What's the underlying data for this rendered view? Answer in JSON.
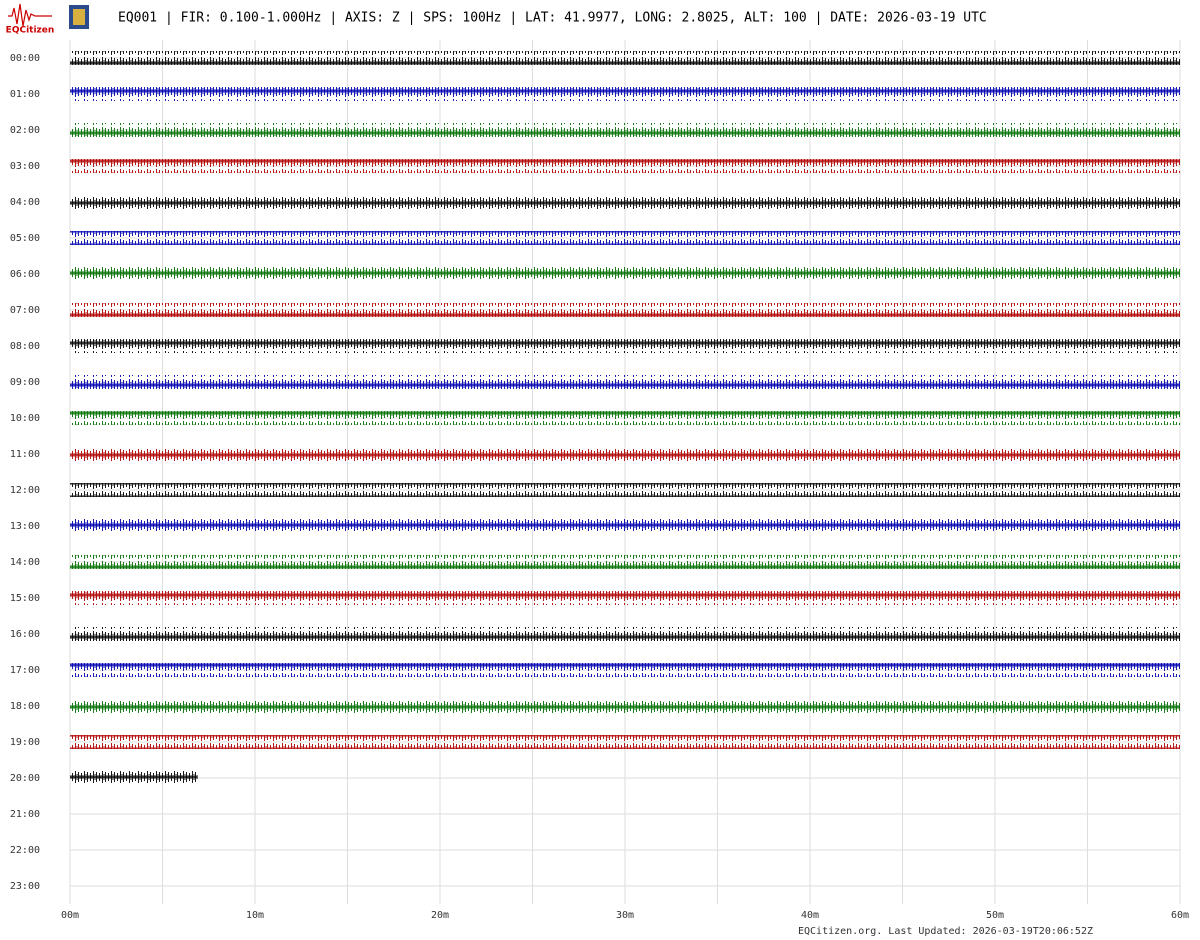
{
  "chart_data": {
    "type": "helicorder",
    "logo_text": "EQCitizen",
    "title": "EQ001 | FIR: 0.100-1.000Hz | AXIS: Z | SPS: 100Hz | LAT: 41.9977, LONG: 2.8025, ALT: 100 | DATE: 2026-03-19 UTC",
    "footer": "EQCitizen.org. Last Updated: 2026-03-19T20:06:52Z",
    "xlim": [
      0,
      60
    ],
    "xticks": [
      {
        "value": 0,
        "label": "00m"
      },
      {
        "value": 10,
        "label": "10m"
      },
      {
        "value": 20,
        "label": "20m"
      },
      {
        "value": 30,
        "label": "30m"
      },
      {
        "value": 40,
        "label": "40m"
      },
      {
        "value": 50,
        "label": "50m"
      },
      {
        "value": 60,
        "label": "60m"
      }
    ],
    "grid_xticks": [
      0,
      5,
      10,
      15,
      20,
      25,
      30,
      35,
      40,
      45,
      50,
      55,
      60
    ],
    "grid": true,
    "rows": [
      {
        "label": "00:00",
        "color": "#000000",
        "end": 60
      },
      {
        "label": "01:00",
        "color": "#0000b0",
        "end": 60
      },
      {
        "label": "02:00",
        "color": "#007000",
        "end": 60
      },
      {
        "label": "03:00",
        "color": "#b00000",
        "end": 60
      },
      {
        "label": "04:00",
        "color": "#000000",
        "end": 60
      },
      {
        "label": "05:00",
        "color": "#0000b0",
        "end": 60
      },
      {
        "label": "06:00",
        "color": "#007000",
        "end": 60
      },
      {
        "label": "07:00",
        "color": "#b00000",
        "end": 60
      },
      {
        "label": "08:00",
        "color": "#000000",
        "end": 60
      },
      {
        "label": "09:00",
        "color": "#0000b0",
        "end": 60
      },
      {
        "label": "10:00",
        "color": "#007000",
        "end": 60
      },
      {
        "label": "11:00",
        "color": "#b00000",
        "end": 60
      },
      {
        "label": "12:00",
        "color": "#000000",
        "end": 60
      },
      {
        "label": "13:00",
        "color": "#0000b0",
        "end": 60
      },
      {
        "label": "14:00",
        "color": "#007000",
        "end": 60
      },
      {
        "label": "15:00",
        "color": "#b00000",
        "end": 60
      },
      {
        "label": "16:00",
        "color": "#000000",
        "end": 60
      },
      {
        "label": "17:00",
        "color": "#0000b0",
        "end": 60
      },
      {
        "label": "18:00",
        "color": "#007000",
        "end": 60
      },
      {
        "label": "19:00",
        "color": "#b00000",
        "end": 60
      },
      {
        "label": "20:00",
        "color": "#000000",
        "end": 6.9
      },
      {
        "label": "21:00",
        "color": "#0000b0",
        "end": null
      },
      {
        "label": "22:00",
        "color": "#007000",
        "end": null
      },
      {
        "label": "23:00",
        "color": "#b00000",
        "end": null
      }
    ]
  }
}
